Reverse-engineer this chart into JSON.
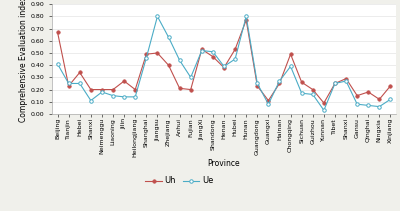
{
  "provinces": [
    "Beijing",
    "Tianjin",
    "Hebei",
    "Shanxi",
    "Neimenggu",
    "Liaoning",
    "Jilin",
    "Heilongjiang",
    "Shanghai",
    "Jiangsu",
    "Zhejiang",
    "Anhui",
    "Fujian",
    "JiangXi",
    "Shandong",
    "Henan",
    "Hubei",
    "Hunan",
    "Guangdong",
    "Guangxi",
    "Hainan",
    "Chongqing",
    "Sichuan",
    "Guizhou",
    "Yunnan",
    "Tibet",
    "Shanxi",
    "Gansu",
    "Qinghai",
    "Ningxia",
    "Xinjiang"
  ],
  "Uh": [
    0.67,
    0.23,
    0.34,
    0.2,
    0.2,
    0.2,
    0.27,
    0.2,
    0.49,
    0.5,
    0.4,
    0.21,
    0.2,
    0.53,
    0.47,
    0.38,
    0.53,
    0.77,
    0.23,
    0.11,
    0.25,
    0.49,
    0.26,
    0.2,
    0.09,
    0.25,
    0.29,
    0.15,
    0.18,
    0.12,
    0.23
  ],
  "Ue": [
    0.41,
    0.25,
    0.25,
    0.11,
    0.18,
    0.15,
    0.14,
    0.14,
    0.46,
    0.8,
    0.63,
    0.44,
    0.3,
    0.52,
    0.51,
    0.39,
    0.45,
    0.8,
    0.25,
    0.08,
    0.27,
    0.39,
    0.17,
    0.16,
    0.03,
    0.25,
    0.27,
    0.08,
    0.07,
    0.06,
    0.12
  ],
  "Uh_color": "#c0504d",
  "Ue_color": "#4bacc6",
  "ylabel": "Comprehensive Evaluation index",
  "xlabel": "Province",
  "ylim": [
    0.0,
    0.9
  ],
  "yticks": [
    0.0,
    0.1,
    0.2,
    0.3,
    0.4,
    0.5,
    0.6,
    0.7,
    0.8,
    0.9
  ],
  "legend_Uh": "Uh",
  "legend_Ue": "Ue",
  "plot_bg_color": "#ffffff",
  "fig_bg_color": "#f0f0eb",
  "tick_fontsize": 4.5,
  "label_fontsize": 5.5,
  "legend_fontsize": 6.0,
  "line_width": 0.8,
  "marker_size": 2.5
}
